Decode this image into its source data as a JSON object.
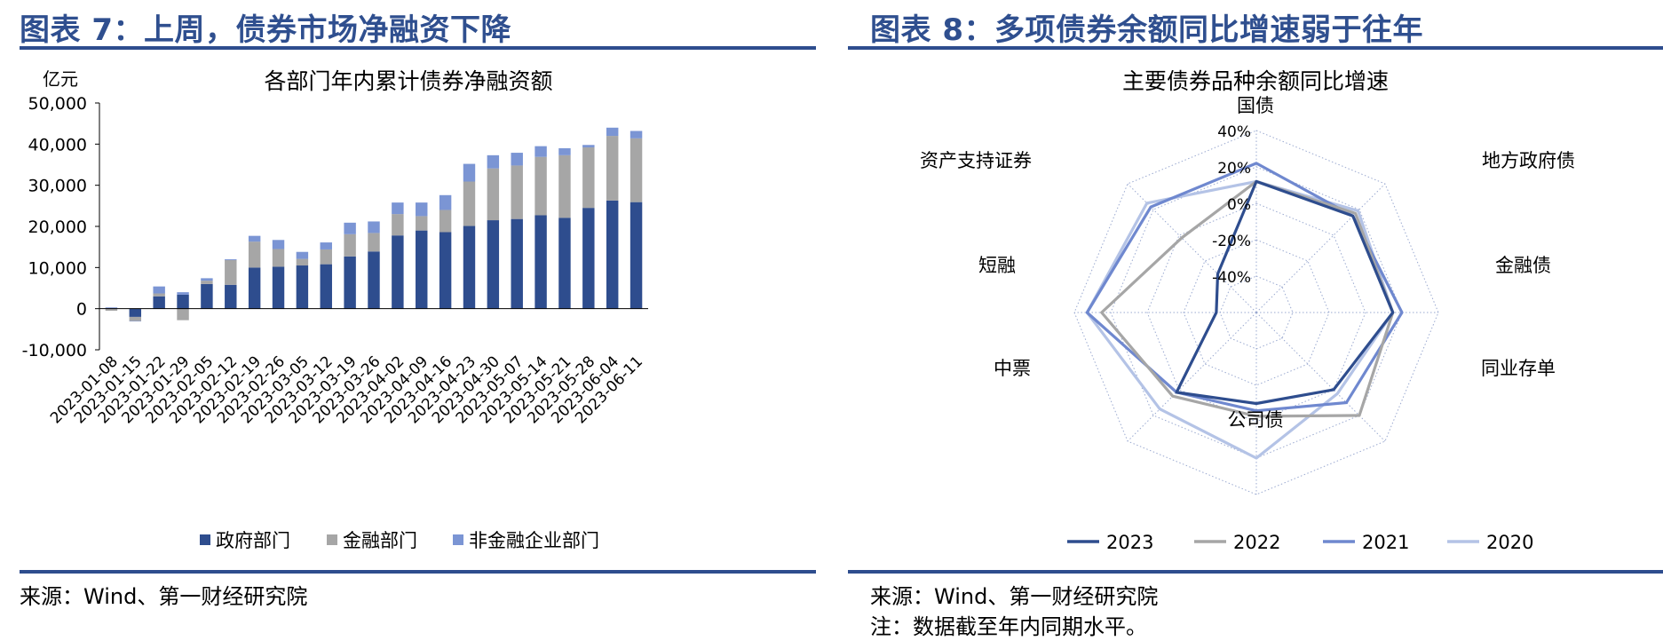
{
  "left": {
    "figure_title": "图表 7：上周，债券市场净融资下降",
    "source": "来源：Wind、第一财经研究院"
  },
  "right": {
    "figure_title": "图表 8：多项债券余额同比增速弱于往年",
    "source": "来源：Wind、第一财经研究院",
    "note": "注：数据截至年内同期水平。"
  },
  "chart_data": [
    {
      "type": "bar",
      "stacked": true,
      "title": "各部门年内累计债券净融资额",
      "unit_label": "亿元",
      "xlabel": "",
      "ylabel": "",
      "ylim": [
        -10000,
        50000
      ],
      "yticks": [
        -10000,
        0,
        10000,
        20000,
        30000,
        40000,
        50000
      ],
      "ytick_labels": [
        "-10,000",
        "0",
        "10,000",
        "20,000",
        "30,000",
        "40,000",
        "50,000"
      ],
      "grid": false,
      "legend_position": "bottom",
      "categories": [
        "2023-01-08",
        "2023-01-15",
        "2023-01-22",
        "2023-01-29",
        "2023-02-05",
        "2023-02-12",
        "2023-02-19",
        "2023-02-26",
        "2023-03-05",
        "2023-03-12",
        "2023-03-19",
        "2023-03-26",
        "2023-04-02",
        "2023-04-09",
        "2023-04-16",
        "2023-04-23",
        "2023-04-30",
        "2023-05-07",
        "2023-05-14",
        "2023-05-21",
        "2023-05-28",
        "2023-06-04",
        "2023-06-11"
      ],
      "series": [
        {
          "name": "政府部门",
          "color": "#2e4d8e",
          "values": [
            0,
            -2000,
            3000,
            3400,
            6000,
            5800,
            10000,
            10200,
            10500,
            10800,
            12700,
            13900,
            17800,
            19000,
            18600,
            20100,
            21500,
            21800,
            22700,
            22100,
            24500,
            26300,
            25900
          ]
        },
        {
          "name": "金融部门",
          "color": "#a6a6a6",
          "values": [
            -500,
            -1000,
            700,
            -2800,
            800,
            6000,
            6300,
            4300,
            1600,
            3600,
            5400,
            4500,
            5200,
            3500,
            5400,
            10800,
            12600,
            13000,
            14200,
            15200,
            14700,
            15700,
            15500
          ]
        },
        {
          "name": "非金融企业部门",
          "color": "#7b95d4",
          "values": [
            300,
            -100,
            1700,
            600,
            600,
            200,
            1400,
            2200,
            1700,
            1700,
            2800,
            2800,
            2800,
            3300,
            3600,
            4300,
            3200,
            3100,
            2600,
            1700,
            600,
            2000,
            1800
          ]
        }
      ]
    },
    {
      "type": "radar",
      "title": "主要债券品种余额同比增速",
      "axes": [
        "国债",
        "地方政府债",
        "金融债",
        "同业存单",
        "公司债",
        "中票",
        "短融",
        "资产支持证券"
      ],
      "rlim": [
        -60,
        40
      ],
      "rticks": [
        -40,
        -20,
        0,
        20,
        40
      ],
      "rtick_labels": [
        "-40%",
        "-20%",
        "0%",
        "20%",
        "40%"
      ],
      "legend_position": "bottom",
      "series": [
        {
          "name": "2023",
          "color": "#2e4d8e",
          "values": [
            12,
            15,
            15,
            0,
            -10,
            2,
            -38,
            -30
          ]
        },
        {
          "name": "2022",
          "color": "#a6a6a6",
          "values": [
            12,
            17,
            15,
            20,
            -3,
            5,
            25,
            -2
          ]
        },
        {
          "name": "2021",
          "color": "#6f88cf",
          "values": [
            22,
            15,
            20,
            10,
            -6,
            2,
            33,
            22
          ]
        },
        {
          "name": "2020",
          "color": "#b4c3e6",
          "values": [
            12,
            19,
            15,
            3,
            20,
            15,
            33,
            25
          ]
        }
      ]
    }
  ]
}
